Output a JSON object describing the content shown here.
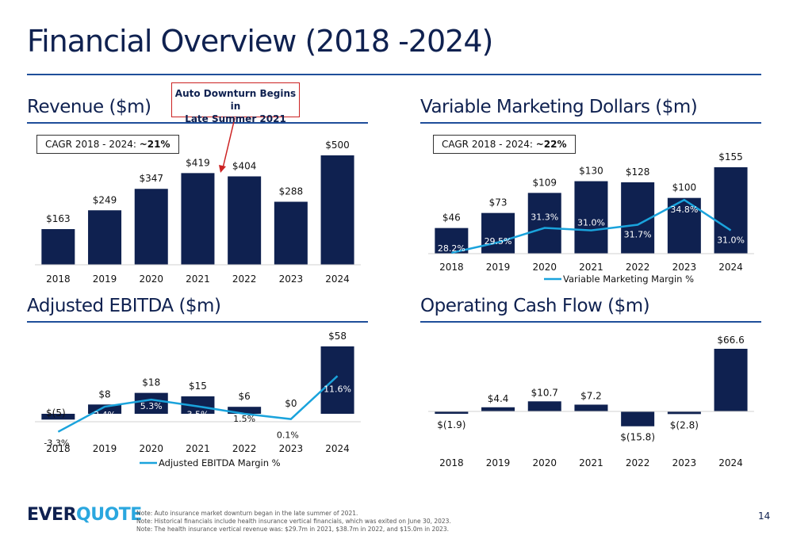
{
  "title": "Financial Overview (2018 -2024)",
  "colors": {
    "navy": "#0f2150",
    "line": "#1aa3dc",
    "rule": "#1f4e9a",
    "callout_border": "#cc2222"
  },
  "callout": {
    "line1": "Auto Downturn Begins in",
    "line2": "Late Summer 2021"
  },
  "revenue": {
    "title": "Revenue ($m)",
    "cagr_label": "CAGR 2018 - 2024: ",
    "cagr_value": "~21%"
  },
  "vmd": {
    "title": "Variable Marketing Dollars ($m)",
    "cagr_label": "CAGR 2018 - 2024: ",
    "cagr_value": "~22%"
  },
  "ebitda": {
    "title": "Adjusted EBITDA ($m)"
  },
  "ocf": {
    "title": "Operating Cash Flow ($m)"
  },
  "chart_data": [
    {
      "id": "revenue",
      "type": "bar",
      "title": "Revenue ($m)",
      "categories": [
        "2018",
        "2019",
        "2020",
        "2021",
        "2022",
        "2023",
        "2024"
      ],
      "values": [
        163,
        249,
        347,
        419,
        404,
        288,
        500
      ],
      "labels": [
        "$163",
        "$249",
        "$347",
        "$419",
        "$404",
        "$288",
        "$500"
      ],
      "ylim": [
        0,
        500
      ]
    },
    {
      "id": "vmd",
      "type": "bar",
      "title": "Variable Marketing Dollars ($m)",
      "categories": [
        "2018",
        "2019",
        "2020",
        "2021",
        "2022",
        "2023",
        "2024"
      ],
      "values": [
        46,
        73,
        109,
        130,
        128,
        100,
        155
      ],
      "labels": [
        "$46",
        "$73",
        "$109",
        "$130",
        "$128",
        "$100",
        "$155"
      ],
      "ylim": [
        0,
        155
      ],
      "line_series": {
        "name": "Variable Marketing Margin %",
        "values": [
          28.2,
          29.5,
          31.3,
          31.0,
          31.7,
          34.8,
          31.0
        ],
        "labels": [
          "28.2%",
          "29.5%",
          "31.3%",
          "31.0%",
          "31.7%",
          "34.8%",
          "31.0%"
        ],
        "ylim": [
          27.5,
          36
        ]
      },
      "legend": "bottom-center"
    },
    {
      "id": "ebitda",
      "type": "bar",
      "title": "Adjusted EBITDA ($m)",
      "categories": [
        "2018",
        "2019",
        "2020",
        "2021",
        "2022",
        "2023",
        "2024"
      ],
      "values": [
        -5,
        8,
        18,
        15,
        6,
        0,
        58
      ],
      "labels": [
        "$(5)",
        "$8",
        "$18",
        "$15",
        "$6",
        "$0",
        "$58"
      ],
      "ylim": [
        -5,
        58
      ],
      "line_series": {
        "name": "Adjusted EBITDA Margin %",
        "values": [
          -3.3,
          3.4,
          5.3,
          3.5,
          1.5,
          0.1,
          11.6
        ],
        "labels": [
          "-3.3%",
          "3.4%",
          "5.3%",
          "3.5%",
          "1.5%",
          "0.1%",
          "11.6%"
        ],
        "ylim": [
          -4,
          14
        ]
      },
      "legend": "bottom-center"
    },
    {
      "id": "ocf",
      "type": "bar",
      "title": "Operating Cash Flow ($m)",
      "categories": [
        "2018",
        "2019",
        "2020",
        "2021",
        "2022",
        "2023",
        "2024"
      ],
      "values": [
        -1.9,
        4.4,
        10.7,
        7.2,
        -15.8,
        -2.8,
        66.6
      ],
      "labels": [
        "$(1.9)",
        "$4.4",
        "$10.7",
        "$7.2",
        "$(15.8)",
        "$(2.8)",
        "$66.6"
      ],
      "ylim": [
        -15.8,
        66.6
      ]
    }
  ],
  "footer": {
    "logo_part1": "EVER",
    "logo_part2": "QUOTE",
    "notes": [
      "Note: Auto insurance market downturn began in the late summer of 2021.",
      "Note: Historical financials include health insurance vertical financials, which was exited on June 30, 2023.",
      "Note: The health insurance vertical revenue was: $29.7m in 2021, $38.7m in 2022, and $15.0m in 2023."
    ],
    "page_number": "14"
  }
}
